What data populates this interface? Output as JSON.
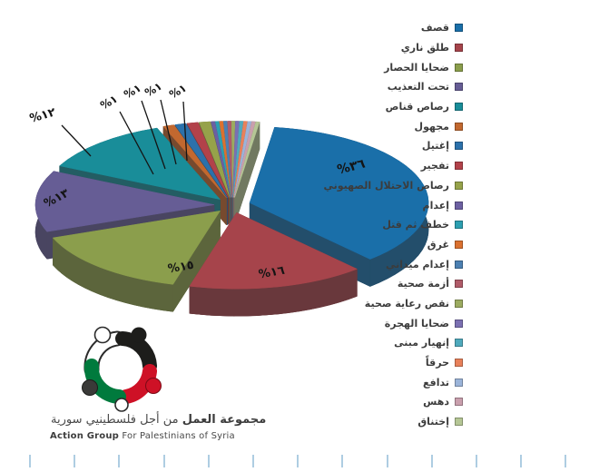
{
  "chart_data": {
    "type": "pie",
    "style": "3d-exploded",
    "title": "",
    "legend_position": "right",
    "digits": "arabic-indic",
    "slices": [
      {
        "label": "قصف",
        "value": 36,
        "display": "%٣٦",
        "color": "#1a6fa9"
      },
      {
        "label": "طلق ناري",
        "value": 16,
        "display": "%١٦",
        "color": "#a6444b"
      },
      {
        "label": "ضحايا الحصار",
        "value": 15,
        "display": "%١٥",
        "color": "#8b9e4c"
      },
      {
        "label": "تحت التعذيب",
        "value": 13,
        "display": "%١٣",
        "color": "#665d95"
      },
      {
        "label": "رصاص قناص",
        "value": 12,
        "display": "%١٢",
        "color": "#198d99"
      },
      {
        "label": "مجهول",
        "value": 1,
        "display": "%١",
        "color": "#c2682f"
      },
      {
        "label": "إغتيل",
        "value": 1,
        "display": "%١",
        "color": "#2c71ab"
      },
      {
        "label": "تفجير",
        "value": 1,
        "display": "%١",
        "color": "#b2424a"
      },
      {
        "label": "رصاص الاحتلال الصهيوني",
        "value": 1,
        "display": "%١",
        "color": "#96a24a"
      },
      {
        "label": "إعدام",
        "value": 0.33,
        "display": "",
        "color": "#6c60a2"
      },
      {
        "label": "خطف ثم قتل",
        "value": 0.33,
        "display": "",
        "color": "#2c9fb1"
      },
      {
        "label": "غرق",
        "value": 0.33,
        "display": "",
        "color": "#db712f"
      },
      {
        "label": "إعدام ميداني",
        "value": 0.33,
        "display": "",
        "color": "#4c80b2"
      },
      {
        "label": "أزمة صحية",
        "value": 0.33,
        "display": "",
        "color": "#b05b69"
      },
      {
        "label": "نقص رعاية صحية",
        "value": 0.33,
        "display": "",
        "color": "#9cab60"
      },
      {
        "label": "ضحايا الهجرة",
        "value": 0.33,
        "display": "",
        "color": "#7b70b2"
      },
      {
        "label": "إنهيار مبنى",
        "value": 0.33,
        "display": "",
        "color": "#4faabd"
      },
      {
        "label": "حرقاً",
        "value": 0.33,
        "display": "",
        "color": "#e8815a"
      },
      {
        "label": "تدافع",
        "value": 0.33,
        "display": "",
        "color": "#9bb4d9"
      },
      {
        "label": "دهس",
        "value": 0.33,
        "display": "",
        "color": "#c99fad"
      },
      {
        "label": "إختناق",
        "value": 0.33,
        "display": "",
        "color": "#b5c695"
      }
    ]
  },
  "footer": {
    "org_ar_bold": "مجموعة العمل",
    "org_ar_rest": " من أجل فلسطينيي سورية",
    "org_en_bold": "Action Group",
    "org_en_rest": " For Palestinians of Syria"
  },
  "brand_colors": {
    "palestine_black": "#1d1d1b",
    "palestine_red": "#ce1126",
    "palestine_green": "#007a3d",
    "tick_blue": "#aecde2"
  }
}
